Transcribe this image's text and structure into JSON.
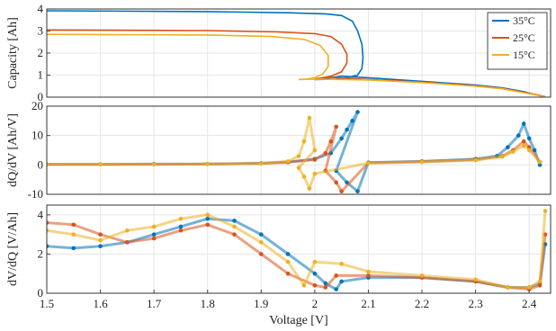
{
  "chart_data": [
    {
      "type": "line",
      "panel": "top",
      "ylabel": "Capacity [Ah]",
      "ylim": [
        0,
        4
      ],
      "yticks": [
        0,
        1,
        2,
        3,
        4
      ],
      "xlim": [
        1.5,
        2.44
      ],
      "grid": true,
      "legend": {
        "placement": "top-right",
        "entries": [
          "35°C",
          "25°C",
          "15°C"
        ]
      },
      "series": [
        {
          "name": "35°C",
          "color": "#0072BD",
          "charge": [
            [
              1.5,
              3.92
            ],
            [
              1.8,
              3.88
            ],
            [
              1.95,
              3.83
            ],
            [
              2.02,
              3.78
            ],
            [
              2.05,
              3.7
            ],
            [
              2.07,
              3.45
            ],
            [
              2.08,
              3.0
            ],
            [
              2.088,
              2.4
            ],
            [
              2.09,
              1.8
            ],
            [
              2.088,
              1.3
            ],
            [
              2.08,
              1.0
            ],
            [
              2.06,
              0.88
            ],
            [
              2.04,
              0.82
            ],
            [
              2.0,
              0.8
            ]
          ],
          "discharge": [
            [
              2.0,
              0.8
            ],
            [
              2.05,
              0.95
            ],
            [
              2.1,
              0.88
            ],
            [
              2.2,
              0.72
            ],
            [
              2.3,
              0.55
            ],
            [
              2.35,
              0.42
            ],
            [
              2.39,
              0.25
            ],
            [
              2.41,
              0.12
            ],
            [
              2.43,
              0.02
            ]
          ]
        },
        {
          "name": "25°C",
          "color": "#D95319",
          "charge": [
            [
              1.5,
              3.05
            ],
            [
              1.8,
              3.02
            ],
            [
              1.93,
              2.96
            ],
            [
              2.0,
              2.88
            ],
            [
              2.03,
              2.75
            ],
            [
              2.05,
              2.4
            ],
            [
              2.06,
              1.95
            ],
            [
              2.06,
              1.55
            ],
            [
              2.05,
              1.15
            ],
            [
              2.03,
              0.95
            ],
            [
              2.01,
              0.86
            ],
            [
              2.0,
              0.83
            ]
          ],
          "discharge": [
            [
              2.0,
              0.83
            ],
            [
              2.03,
              0.9
            ],
            [
              2.1,
              0.8
            ],
            [
              2.2,
              0.68
            ],
            [
              2.3,
              0.52
            ],
            [
              2.35,
              0.4
            ],
            [
              2.39,
              0.22
            ],
            [
              2.42,
              0.08
            ],
            [
              2.43,
              0.01
            ]
          ]
        },
        {
          "name": "15°C",
          "color": "#EDB120",
          "charge": [
            [
              1.5,
              2.85
            ],
            [
              1.8,
              2.82
            ],
            [
              1.92,
              2.75
            ],
            [
              1.98,
              2.62
            ],
            [
              2.01,
              2.35
            ],
            [
              2.025,
              1.9
            ],
            [
              2.025,
              1.4
            ],
            [
              2.015,
              1.05
            ],
            [
              2.0,
              0.88
            ],
            [
              1.985,
              0.82
            ],
            [
              1.97,
              0.8
            ]
          ],
          "discharge": [
            [
              1.97,
              0.8
            ],
            [
              2.0,
              0.82
            ],
            [
              2.1,
              0.78
            ],
            [
              2.2,
              0.66
            ],
            [
              2.3,
              0.5
            ],
            [
              2.35,
              0.38
            ],
            [
              2.39,
              0.2
            ],
            [
              2.42,
              0.06
            ],
            [
              2.43,
              0.0
            ]
          ]
        }
      ]
    },
    {
      "type": "scatter",
      "panel": "middle",
      "ylabel": "dQ/dV [Ah/V]",
      "ylim": [
        -10,
        20
      ],
      "yticks": [
        -10,
        0,
        10,
        20
      ],
      "xlim": [
        1.5,
        2.44
      ],
      "grid": true,
      "series": [
        {
          "name": "35°C",
          "color": "#0072BD",
          "points": [
            [
              1.5,
              0.2
            ],
            [
              1.6,
              0.2
            ],
            [
              1.7,
              0.3
            ],
            [
              1.8,
              0.3
            ],
            [
              1.9,
              0.6
            ],
            [
              1.95,
              1.0
            ],
            [
              2.0,
              2.0
            ],
            [
              2.03,
              4.0
            ],
            [
              2.05,
              9.0
            ],
            [
              2.06,
              12.0
            ],
            [
              2.07,
              15.0
            ],
            [
              2.08,
              18.0
            ],
            [
              2.04,
              -2.0
            ],
            [
              2.06,
              -6.0
            ],
            [
              2.08,
              -9.0
            ],
            [
              2.1,
              0.8
            ],
            [
              2.2,
              1.2
            ],
            [
              2.3,
              2.0
            ],
            [
              2.34,
              3.0
            ],
            [
              2.36,
              6.0
            ],
            [
              2.38,
              10.0
            ],
            [
              2.39,
              14.0
            ],
            [
              2.4,
              9.0
            ],
            [
              2.41,
              5.0
            ],
            [
              2.42,
              0.0
            ]
          ]
        },
        {
          "name": "25°C",
          "color": "#D95319",
          "points": [
            [
              1.5,
              0.2
            ],
            [
              1.6,
              0.2
            ],
            [
              1.7,
              0.2
            ],
            [
              1.8,
              0.3
            ],
            [
              1.9,
              0.5
            ],
            [
              1.95,
              0.9
            ],
            [
              2.0,
              1.8
            ],
            [
              2.02,
              4.0
            ],
            [
              2.03,
              8.0
            ],
            [
              2.04,
              13.0
            ],
            [
              2.02,
              -2.0
            ],
            [
              2.04,
              -6.0
            ],
            [
              2.05,
              -9.0
            ],
            [
              2.1,
              0.7
            ],
            [
              2.2,
              1.1
            ],
            [
              2.3,
              1.8
            ],
            [
              2.35,
              3.0
            ],
            [
              2.37,
              5.0
            ],
            [
              2.39,
              8.0
            ],
            [
              2.4,
              6.0
            ],
            [
              2.42,
              1.0
            ]
          ]
        },
        {
          "name": "15°C",
          "color": "#EDB120",
          "points": [
            [
              1.5,
              0.2
            ],
            [
              1.6,
              0.2
            ],
            [
              1.7,
              0.2
            ],
            [
              1.8,
              0.3
            ],
            [
              1.9,
              0.5
            ],
            [
              1.95,
              1.2
            ],
            [
              1.97,
              3.0
            ],
            [
              1.98,
              8.0
            ],
            [
              1.99,
              16.0
            ],
            [
              2.0,
              5.0
            ],
            [
              1.97,
              -1.0
            ],
            [
              1.98,
              -4.0
            ],
            [
              1.99,
              -8.0
            ],
            [
              2.0,
              -3.0
            ],
            [
              2.1,
              0.6
            ],
            [
              2.2,
              1.0
            ],
            [
              2.3,
              1.6
            ],
            [
              2.35,
              2.8
            ],
            [
              2.37,
              4.5
            ],
            [
              2.39,
              6.5
            ],
            [
              2.4,
              5.0
            ],
            [
              2.42,
              1.0
            ]
          ]
        }
      ]
    },
    {
      "type": "scatter",
      "panel": "bottom",
      "xlabel": "Voltage [V]",
      "ylabel": "dV/dQ [V/Ah]",
      "ylim": [
        0,
        4.5
      ],
      "yticks": [
        0,
        2,
        4
      ],
      "xlim": [
        1.5,
        2.44
      ],
      "xticks": [
        1.5,
        1.6,
        1.7,
        1.8,
        1.9,
        2.0,
        2.1,
        2.2,
        2.3,
        2.4
      ],
      "xticklabels": [
        "1.5",
        "1.6",
        "1.7",
        "1.8",
        "1.9",
        "2",
        "2.1",
        "2.2",
        "2.3",
        "2.4"
      ],
      "grid": true,
      "series": [
        {
          "name": "35°C",
          "color": "#0072BD",
          "points": [
            [
              1.5,
              2.4
            ],
            [
              1.55,
              2.3
            ],
            [
              1.6,
              2.4
            ],
            [
              1.65,
              2.6
            ],
            [
              1.7,
              3.0
            ],
            [
              1.75,
              3.4
            ],
            [
              1.8,
              3.8
            ],
            [
              1.85,
              3.7
            ],
            [
              1.9,
              3.0
            ],
            [
              1.95,
              2.0
            ],
            [
              2.0,
              1.0
            ],
            [
              2.02,
              0.5
            ],
            [
              2.04,
              0.2
            ],
            [
              2.05,
              0.6
            ],
            [
              2.1,
              0.8
            ],
            [
              2.2,
              0.8
            ],
            [
              2.3,
              0.6
            ],
            [
              2.36,
              0.3
            ],
            [
              2.4,
              0.3
            ],
            [
              2.42,
              0.5
            ],
            [
              2.43,
              2.5
            ]
          ]
        },
        {
          "name": "25°C",
          "color": "#D95319",
          "points": [
            [
              1.5,
              3.6
            ],
            [
              1.55,
              3.5
            ],
            [
              1.6,
              3.0
            ],
            [
              1.65,
              2.6
            ],
            [
              1.7,
              2.8
            ],
            [
              1.75,
              3.2
            ],
            [
              1.8,
              3.5
            ],
            [
              1.85,
              3.0
            ],
            [
              1.9,
              2.0
            ],
            [
              1.95,
              1.0
            ],
            [
              2.0,
              0.4
            ],
            [
              2.02,
              0.3
            ],
            [
              2.04,
              0.9
            ],
            [
              2.1,
              0.9
            ],
            [
              2.2,
              0.8
            ],
            [
              2.3,
              0.6
            ],
            [
              2.36,
              0.3
            ],
            [
              2.4,
              0.2
            ],
            [
              2.42,
              0.4
            ],
            [
              2.43,
              3.0
            ]
          ]
        },
        {
          "name": "15°C",
          "color": "#EDB120",
          "points": [
            [
              1.5,
              3.2
            ],
            [
              1.55,
              3.0
            ],
            [
              1.6,
              2.7
            ],
            [
              1.65,
              3.2
            ],
            [
              1.7,
              3.4
            ],
            [
              1.75,
              3.8
            ],
            [
              1.8,
              4.0
            ],
            [
              1.85,
              3.4
            ],
            [
              1.9,
              2.6
            ],
            [
              1.95,
              1.6
            ],
            [
              1.98,
              0.4
            ],
            [
              2.0,
              1.6
            ],
            [
              2.05,
              1.5
            ],
            [
              2.1,
              1.1
            ],
            [
              2.2,
              0.9
            ],
            [
              2.3,
              0.7
            ],
            [
              2.36,
              0.3
            ],
            [
              2.4,
              0.3
            ],
            [
              2.42,
              0.6
            ],
            [
              2.43,
              4.2
            ]
          ]
        }
      ]
    }
  ]
}
